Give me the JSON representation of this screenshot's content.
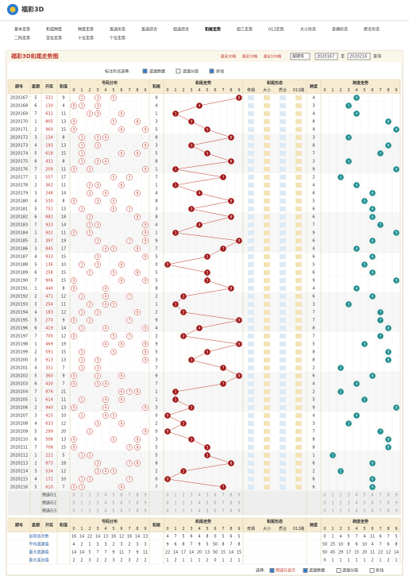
{
  "header": {
    "logo": "福彩3D"
  },
  "nav": {
    "items": [
      "基本走势",
      "和值跨度",
      "跨度走势",
      "直选形态",
      "直选综合",
      "组选综合",
      "和尾走势",
      "组三走势",
      "012走势",
      "大小形态",
      "奇偶形态",
      "质合形态",
      "二码走势",
      "百位走势",
      "十位走势",
      "个位走势"
    ],
    "active": 6
  },
  "title": "福彩3D和尾走势图",
  "query": {
    "recent": [
      "最近30期",
      "最近50期",
      "最近100期"
    ],
    "select": "按期号",
    "from": "2020167",
    "to_label": "至",
    "to": "2020216",
    "button": "查询"
  },
  "options": {
    "label": "标注形式选择:",
    "items": [
      "遗漏数据",
      "遗漏分层",
      "折线"
    ],
    "checked": [
      true,
      false,
      true
    ]
  },
  "table": {
    "headers": [
      "期号",
      "星期",
      "开奖",
      "和值",
      "号码分布",
      "和尾",
      "和尾走势",
      "和尾形态",
      "跨度",
      "跨度走势"
    ],
    "form_headers": [
      "奇偶",
      "大小",
      "质合",
      "012路"
    ],
    "digits": [
      0,
      1,
      2,
      3,
      4,
      5,
      6,
      7,
      8,
      9
    ],
    "rows": [
      [
        "2020167",
        5,
        "531",
        9,
        9,
        4
      ],
      [
        "2020168",
        6,
        "130",
        4,
        4,
        3
      ],
      [
        "2020169",
        7,
        "632",
        11,
        1,
        4
      ],
      [
        "2020170",
        1,
        "805",
        13,
        3,
        8
      ],
      [
        "2020171",
        2,
        "960",
        15,
        5,
        9
      ],
      [
        "2020172",
        3,
        "134",
        8,
        8,
        3
      ],
      [
        "2020173",
        4,
        "193",
        13,
        3,
        8
      ],
      [
        "2020174",
        5,
        "618",
        15,
        5,
        7
      ],
      [
        "2020175",
        6,
        "431",
        8,
        8,
        3
      ],
      [
        "2020176",
        7,
        "209",
        11,
        1,
        9
      ],
      [
        "2020177",
        1,
        "557",
        17,
        7,
        2
      ],
      [
        "2020178",
        2,
        "362",
        11,
        1,
        4
      ],
      [
        "2020179",
        3,
        "248",
        14,
        4,
        6
      ],
      [
        "2020180",
        4,
        "530",
        8,
        8,
        5
      ],
      [
        "2020181",
        5,
        "751",
        13,
        3,
        6
      ],
      [
        "2020182",
        6,
        "882",
        18,
        8,
        6
      ],
      [
        "2020183",
        7,
        "923",
        14,
        4,
        7
      ],
      [
        "2020184",
        1,
        "902",
        11,
        1,
        9
      ],
      [
        "2020185",
        2,
        "397",
        19,
        9,
        6
      ],
      [
        "2020186",
        3,
        "845",
        17,
        7,
        4
      ],
      [
        "2020187",
        4,
        "933",
        15,
        5,
        6
      ],
      [
        "2020188",
        5,
        "136",
        10,
        0,
        5
      ],
      [
        "2020189",
        6,
        "258",
        15,
        5,
        6
      ],
      [
        "2020190",
        7,
        "906",
        15,
        5,
        9
      ],
      [
        "2020191",
        1,
        "440",
        8,
        8,
        4
      ],
      [
        "2020192",
        2,
        "471",
        12,
        2,
        6
      ],
      [
        "2020193",
        3,
        "254",
        11,
        1,
        3
      ],
      [
        "2020194",
        4,
        "183",
        12,
        2,
        7
      ],
      [
        "2020195",
        5,
        "270",
        9,
        9,
        7
      ],
      [
        "2020196",
        6,
        "419",
        14,
        4,
        8
      ],
      [
        "2020197",
        7,
        "705",
        12,
        2,
        7
      ],
      [
        "2020198",
        1,
        "469",
        19,
        9,
        5
      ],
      [
        "2020199",
        2,
        "591",
        15,
        5,
        8
      ],
      [
        "2020200",
        3,
        "913",
        13,
        3,
        8
      ],
      [
        "2020201",
        4,
        "331",
        7,
        7,
        2
      ],
      [
        "2020202",
        5,
        "360",
        9,
        9,
        6
      ],
      [
        "2020203",
        6,
        "430",
        7,
        7,
        4
      ],
      [
        "2020204",
        7,
        "876",
        21,
        1,
        2
      ],
      [
        "2020205",
        1,
        "614",
        11,
        1,
        5
      ],
      [
        "2020206",
        2,
        "940",
        13,
        3,
        9
      ],
      [
        "2020207",
        3,
        "415",
        10,
        0,
        4
      ],
      [
        "2020208",
        4,
        "633",
        12,
        2,
        3
      ],
      [
        "2020209",
        5,
        "299",
        20,
        0,
        7
      ],
      [
        "2020210",
        6,
        "508",
        13,
        3,
        8
      ],
      [
        "2020211",
        7,
        "708",
        15,
        5,
        8
      ],
      [
        "2020212",
        1,
        "221",
        5,
        5,
        1
      ],
      [
        "2020213",
        2,
        "873",
        18,
        8,
        6
      ],
      [
        "2020214",
        3,
        "534",
        12,
        2,
        2
      ],
      [
        "2020215",
        4,
        "172",
        10,
        0,
        6
      ],
      [
        "2020216",
        5,
        "610",
        7,
        7,
        6
      ]
    ],
    "prerows": [
      "预选行1",
      "预选行2",
      "预选行3"
    ],
    "stats": [
      {
        "label": "出现总次数",
        "dist": [
          16,
          14,
          22,
          14,
          13,
          16,
          12,
          16,
          14,
          13
        ],
        "tail": [
          4,
          7,
          5,
          6,
          4,
          8,
          0,
          5,
          6,
          5
        ],
        "span": [
          0,
          1,
          4,
          5,
          7,
          4,
          11,
          6,
          7,
          5
        ]
      },
      {
        "label": "平均遗漏值",
        "dist": [
          4,
          2,
          1,
          3,
          3,
          2,
          3,
          2,
          3,
          3
        ],
        "tail": [
          9,
          6,
          8,
          7,
          9,
          5,
          50,
          8,
          7,
          8
        ],
        "span": [
          50,
          25,
          10,
          8,
          6,
          10,
          4,
          7,
          6,
          8
        ]
      },
      {
        "label": "最大遗漏值",
        "dist": [
          14,
          14,
          5,
          7,
          7,
          9,
          11,
          7,
          9,
          11
        ],
        "tail": [
          22,
          14,
          17,
          14,
          20,
          13,
          50,
          15,
          14,
          15
        ],
        "span": [
          50,
          45,
          29,
          17,
          15,
          20,
          11,
          22,
          12,
          14
        ]
      },
      {
        "label": "最大连出值",
        "dist": [
          2,
          2,
          3,
          2,
          2,
          3,
          2,
          3,
          2,
          2
        ],
        "tail": [
          1,
          2,
          1,
          1,
          1,
          2,
          0,
          1,
          2,
          1
        ],
        "span": [
          0,
          1,
          1,
          1,
          1,
          1,
          2,
          1,
          2,
          1
        ]
      }
    ]
  },
  "footer": {
    "label": "选择:",
    "items": [
      "预选行显示",
      "遗漏数据",
      "遗漏分层",
      "折线"
    ],
    "checked": [
      true,
      true,
      false,
      false
    ]
  }
}
